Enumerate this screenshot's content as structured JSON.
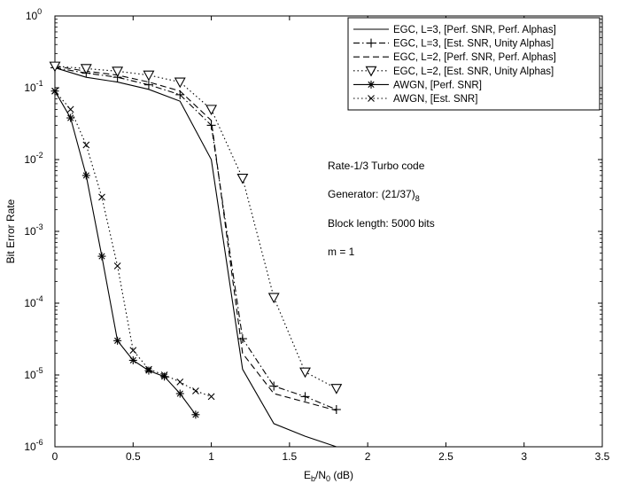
{
  "chart_data": {
    "type": "line",
    "title": "",
    "xlabel": "Eb/N0 (dB)",
    "xlabel_main": "E",
    "xlabel_sub1": "b",
    "xlabel_mid": "/N",
    "xlabel_sub2": "0",
    "xlabel_tail": " (dB)",
    "ylabel": "Bit Error Rate",
    "xlim": [
      0,
      3.5
    ],
    "ylim": [
      1e-06,
      1
    ],
    "yscale": "log",
    "grid": false,
    "legend_position": "top-right",
    "x_ticks": [
      "0",
      "0.5",
      "1",
      "1.5",
      "2",
      "2.5",
      "3",
      "3.5"
    ],
    "y_ticks": [
      {
        "base": "10",
        "exp": "0"
      },
      {
        "base": "10",
        "exp": "-1"
      },
      {
        "base": "10",
        "exp": "-2"
      },
      {
        "base": "10",
        "exp": "-3"
      },
      {
        "base": "10",
        "exp": "-4"
      },
      {
        "base": "10",
        "exp": "-5"
      },
      {
        "base": "10",
        "exp": "-6"
      }
    ],
    "series": [
      {
        "name": "EGC, L=3, [Perf. SNR, Perf. Alphas]",
        "line": "solid",
        "marker": "none",
        "x": [
          0,
          0.2,
          0.4,
          0.6,
          0.8,
          1.0,
          1.2,
          1.4,
          1.6,
          1.8
        ],
        "y": [
          0.19,
          0.14,
          0.12,
          0.095,
          0.065,
          0.01,
          1.2e-05,
          2.1e-06,
          1.4e-06,
          1e-06
        ]
      },
      {
        "name": "EGC, L=3, [Est. SNR, Unity Alphas]",
        "line": "dashdot",
        "marker": "plus",
        "x": [
          0,
          0.2,
          0.4,
          0.6,
          0.8,
          1.0,
          1.2,
          1.4,
          1.6,
          1.8
        ],
        "y": [
          0.19,
          0.16,
          0.14,
          0.11,
          0.08,
          0.03,
          3.2e-05,
          7e-06,
          5e-06,
          3.3e-06
        ]
      },
      {
        "name": "EGC, L=2, [Perf. SNR,  Perf. Alphas]",
        "line": "dashed",
        "marker": "none",
        "x": [
          0,
          0.2,
          0.4,
          0.6,
          0.8,
          1.0,
          1.2,
          1.4,
          1.6,
          1.8
        ],
        "y": [
          0.2,
          0.17,
          0.15,
          0.12,
          0.09,
          0.035,
          2e-05,
          5.5e-06,
          4.2e-06,
          3.2e-06
        ]
      },
      {
        "name": "EGC, L=2, [Est. SNR, Unity Alphas]",
        "line": "dotted",
        "marker": "triangle-down",
        "x": [
          0,
          0.2,
          0.4,
          0.6,
          0.8,
          1.0,
          1.2,
          1.4,
          1.6,
          1.8
        ],
        "y": [
          0.2,
          0.185,
          0.17,
          0.15,
          0.12,
          0.05,
          0.0055,
          0.00012,
          1.1e-05,
          6.5e-06
        ]
      },
      {
        "name": "AWGN, [Perf. SNR]",
        "line": "solid",
        "marker": "asterisk",
        "x": [
          0,
          0.1,
          0.2,
          0.3,
          0.4,
          0.5,
          0.6,
          0.7,
          0.8,
          0.9
        ],
        "y": [
          0.09,
          0.038,
          0.006,
          0.00045,
          3e-05,
          1.6e-05,
          1.15e-05,
          9.5e-06,
          5.5e-06,
          2.8e-06
        ]
      },
      {
        "name": "AWGN, [Est. SNR]",
        "line": "dotted",
        "marker": "x",
        "x": [
          0,
          0.1,
          0.2,
          0.3,
          0.4,
          0.5,
          0.6,
          0.7,
          0.8,
          0.9,
          1.0
        ],
        "y": [
          0.09,
          0.05,
          0.016,
          0.003,
          0.00033,
          2.2e-05,
          1.2e-05,
          1e-05,
          8e-06,
          6e-06,
          5e-06
        ]
      }
    ],
    "annotations": {
      "line1": "Rate-1/3 Turbo code",
      "line2_main": "Generator: (21/37)",
      "line2_sub": "8",
      "line3": "Block length: 5000 bits",
      "line4": "m = 1"
    }
  }
}
